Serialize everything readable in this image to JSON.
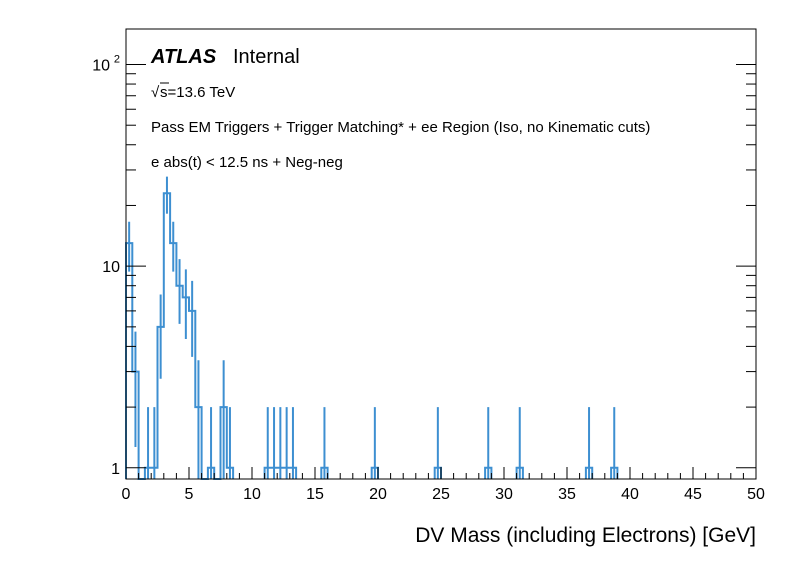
{
  "chart_data": {
    "type": "histogram",
    "title": "",
    "xlabel": "DV Mass (including Electrons) [GeV]",
    "ylabel": "",
    "xlim": [
      0,
      50
    ],
    "ylim": [
      0.88,
      150
    ],
    "yscale": "log",
    "bin_width": 0.5,
    "x_ticks": [
      0,
      5,
      10,
      15,
      20,
      25,
      30,
      35,
      40,
      45,
      50
    ],
    "y_major_ticks": [
      {
        "value": 1,
        "label": "1",
        "exp": ""
      },
      {
        "value": 10,
        "label": "10",
        "exp": ""
      },
      {
        "value": 100,
        "label": "10",
        "exp": "2"
      }
    ],
    "line_color": "#3d8fd1",
    "series": [
      {
        "name": "Neg-neg",
        "bins": [
          {
            "low": 0.0,
            "high": 0.5,
            "value": 13
          },
          {
            "low": 0.5,
            "high": 1.0,
            "value": 3
          },
          {
            "low": 1.0,
            "high": 1.5,
            "value": 0
          },
          {
            "low": 1.5,
            "high": 2.0,
            "value": 1
          },
          {
            "low": 2.0,
            "high": 2.5,
            "value": 1
          },
          {
            "low": 2.5,
            "high": 3.0,
            "value": 5
          },
          {
            "low": 3.0,
            "high": 3.5,
            "value": 23
          },
          {
            "low": 3.5,
            "high": 4.0,
            "value": 13
          },
          {
            "low": 4.0,
            "high": 4.5,
            "value": 8
          },
          {
            "low": 4.5,
            "high": 5.0,
            "value": 7
          },
          {
            "low": 5.0,
            "high": 5.5,
            "value": 6
          },
          {
            "low": 5.5,
            "high": 6.0,
            "value": 2
          },
          {
            "low": 6.0,
            "high": 6.5,
            "value": 0
          },
          {
            "low": 6.5,
            "high": 7.0,
            "value": 1
          },
          {
            "low": 7.0,
            "high": 7.5,
            "value": 0
          },
          {
            "low": 7.5,
            "high": 8.0,
            "value": 2
          },
          {
            "low": 8.0,
            "high": 8.5,
            "value": 1
          },
          {
            "low": 11.0,
            "high": 11.5,
            "value": 1
          },
          {
            "low": 11.5,
            "high": 12.0,
            "value": 1
          },
          {
            "low": 12.0,
            "high": 12.5,
            "value": 1
          },
          {
            "low": 12.5,
            "high": 13.0,
            "value": 1
          },
          {
            "low": 13.0,
            "high": 13.5,
            "value": 1
          },
          {
            "low": 15.5,
            "high": 16.0,
            "value": 1
          },
          {
            "low": 19.5,
            "high": 20.0,
            "value": 1
          },
          {
            "low": 24.5,
            "high": 25.0,
            "value": 1
          },
          {
            "low": 28.5,
            "high": 29.0,
            "value": 1
          },
          {
            "low": 31.0,
            "high": 31.5,
            "value": 1
          },
          {
            "low": 36.5,
            "high": 37.0,
            "value": 1
          },
          {
            "low": 38.5,
            "high": 39.0,
            "value": 1
          }
        ]
      }
    ],
    "annotations": {
      "atlas": "ATLAS",
      "internal": "Internal",
      "sqrt_symbol": "√",
      "energy": "s=13.6 TeV",
      "selection": "Pass EM Triggers + Trigger Matching* + ee Region (Iso, no Kinematic cuts)",
      "cut": "e abs(t) < 12.5 ns + Neg-neg"
    }
  }
}
